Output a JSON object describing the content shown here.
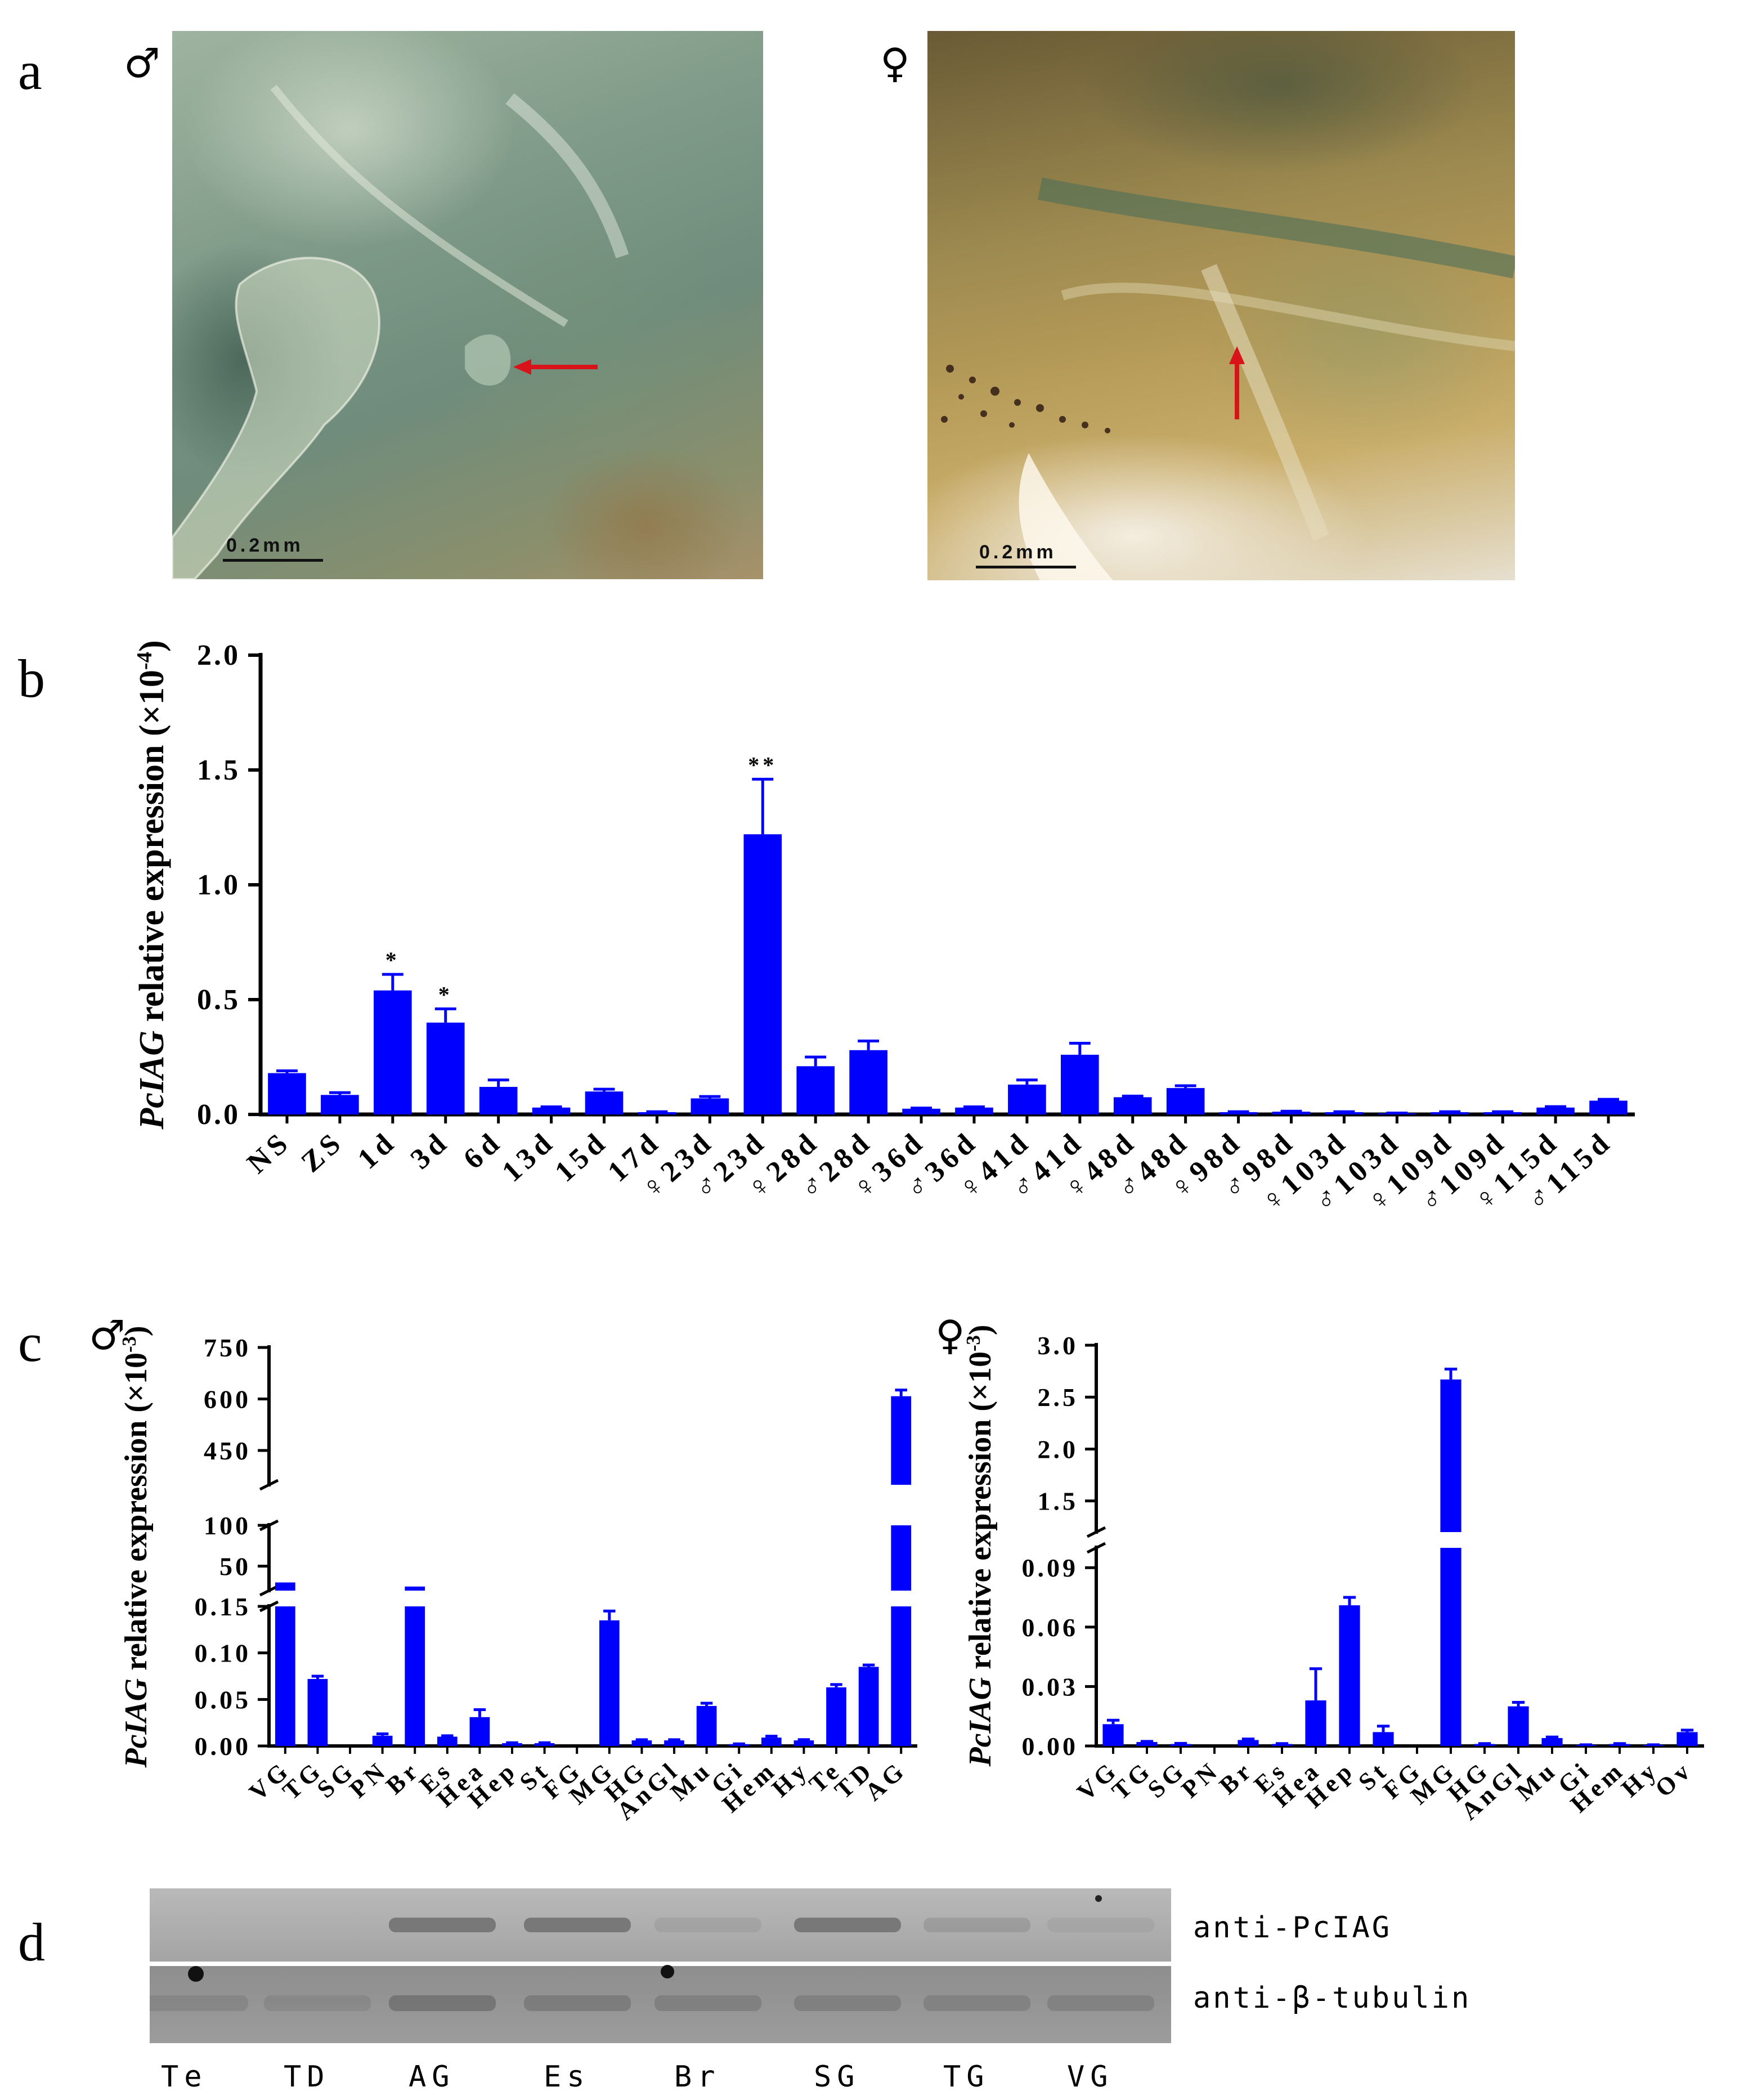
{
  "panels": {
    "a": {
      "letter": "a",
      "male_symbol": "♂",
      "female_symbol": "♀",
      "male_scale": "0.2mm",
      "female_scale": "0.2mm"
    },
    "b": {
      "letter": "b"
    },
    "c": {
      "letter": "c",
      "male_symbol": "♂",
      "female_symbol": "♀"
    },
    "d": {
      "letter": "d",
      "blot_labels": [
        "anti-PcIAG",
        "anti-β-tubulin"
      ],
      "lanes": [
        "Te",
        "TD",
        "AG",
        "Es",
        "Br",
        "SG",
        "TG",
        "VG"
      ],
      "colors": {
        "blot_bg": "#a8a8a8",
        "band": "#6a6a6a"
      }
    }
  },
  "chart_data": [
    {
      "id": "b",
      "type": "bar",
      "title": "",
      "ylabel_italic": "PcIAG",
      "ylabel_rest": " relative expression (×10",
      "ylabel_exp": "-4",
      "ylabel_close": ")",
      "ylim": [
        0,
        2.0
      ],
      "yticks": [
        "0.0",
        "0.5",
        "1.0",
        "1.5",
        "2.0"
      ],
      "ytick_values": [
        0,
        0.5,
        1.0,
        1.5,
        2.0
      ],
      "categories": [
        "NS",
        "ZS",
        "1d",
        "3d",
        "6d",
        "13d",
        "15d",
        "17d",
        "♀23d",
        "♂23d",
        "♀28d",
        "♂28d",
        "♀36d",
        "♂36d",
        "♀41d",
        "♂41d",
        "♀48d",
        "♂48d",
        "♀98d",
        "♂98d",
        "♀103d",
        "♂103d",
        "♀109d",
        "♂109d",
        "♀115d",
        "♂115d"
      ],
      "values": [
        0.18,
        0.085,
        0.54,
        0.4,
        0.12,
        0.03,
        0.1,
        0.01,
        0.07,
        1.22,
        0.21,
        0.28,
        0.025,
        0.03,
        0.13,
        0.26,
        0.075,
        0.115,
        0.01,
        0.012,
        0.01,
        0.005,
        0.01,
        0.01,
        0.03,
        0.06
      ],
      "errors": [
        0.01,
        0.01,
        0.07,
        0.06,
        0.03,
        0.003,
        0.01,
        0.002,
        0.008,
        0.24,
        0.04,
        0.04,
        0.003,
        0.003,
        0.02,
        0.05,
        0.005,
        0.01,
        0.002,
        0.002,
        0.002,
        0.001,
        0.002,
        0.002,
        0.004,
        0.006
      ],
      "significance": {
        "2": "*",
        "3": "*",
        "9": "**"
      },
      "bar_color": "#0000ff"
    },
    {
      "id": "c-male",
      "type": "bar",
      "broken_axis": true,
      "ylabel_italic": "PcIAG",
      "ylabel_rest": " relative expression (×10",
      "ylabel_exp": "-3",
      "ylabel_close": ")",
      "segments": [
        {
          "range": [
            0,
            0.15
          ],
          "ticks": [
            "0.00",
            "0.05",
            "0.10",
            "0.15"
          ],
          "tick_values": [
            0,
            0.05,
            0.1,
            0.15
          ]
        },
        {
          "range": [
            20,
            100
          ],
          "ticks": [
            "50",
            "100"
          ],
          "tick_values": [
            50,
            100
          ]
        },
        {
          "range": [
            350,
            750
          ],
          "ticks": [
            "450",
            "600",
            "750"
          ],
          "tick_values": [
            450,
            600,
            750
          ]
        }
      ],
      "categories": [
        "VG",
        "TG",
        "SG",
        "PN",
        "Br",
        "Es",
        "Hea",
        "Hep",
        "St",
        "FG",
        "MG",
        "HG",
        "AnGl",
        "Mu",
        "Gi",
        "Hem",
        "Hy",
        "Te",
        "TD",
        "AG"
      ],
      "values": [
        30,
        0.072,
        0,
        0.011,
        25,
        0.01,
        0.031,
        0.003,
        0.003,
        0,
        0.135,
        0.006,
        0.006,
        0.043,
        0.002,
        0.009,
        0.006,
        0.063,
        0.085,
        608
      ],
      "errors": [
        0,
        0.003,
        0,
        0.002,
        0,
        0.001,
        0.008,
        0.0005,
        0.0005,
        0,
        0.01,
        0.0007,
        0.0007,
        0.003,
        0.0003,
        0.0015,
        0.0008,
        0.003,
        0.002,
        18
      ],
      "bar_color": "#0000ff"
    },
    {
      "id": "c-female",
      "type": "bar",
      "broken_axis": true,
      "ylabel_italic": "PcIAG",
      "ylabel_rest": " relative expression (×10",
      "ylabel_exp": "-3",
      "ylabel_close": ")",
      "segments": [
        {
          "range": [
            0,
            0.1
          ],
          "ticks": [
            "0.00",
            "0.03",
            "0.06",
            "0.09"
          ],
          "tick_values": [
            0,
            0.03,
            0.06,
            0.09
          ]
        },
        {
          "range": [
            1.2,
            3.0
          ],
          "ticks": [
            "1.5",
            "2.0",
            "2.5",
            "3.0"
          ],
          "tick_values": [
            1.5,
            2.0,
            2.5,
            3.0
          ]
        }
      ],
      "categories": [
        "VG",
        "TG",
        "SG",
        "PN",
        "Br",
        "Es",
        "Hea",
        "Hep",
        "St",
        "FG",
        "MG",
        "HG",
        "AnGl",
        "Mu",
        "Gi",
        "Hem",
        "Hy",
        "Ov"
      ],
      "values": [
        0.011,
        0.002,
        0.001,
        0,
        0.003,
        0.001,
        0.023,
        0.071,
        0.007,
        0,
        2.67,
        0.001,
        0.02,
        0.004,
        0.0005,
        0.001,
        0.0005,
        0.007
      ],
      "errors": [
        0.002,
        0.0003,
        0.0003,
        0,
        0.0005,
        0.0002,
        0.016,
        0.004,
        0.003,
        0,
        0.1,
        0.0002,
        0.002,
        0.0005,
        0.0001,
        0.0002,
        0.0001,
        0.001
      ],
      "bar_color": "#0000ff"
    }
  ]
}
